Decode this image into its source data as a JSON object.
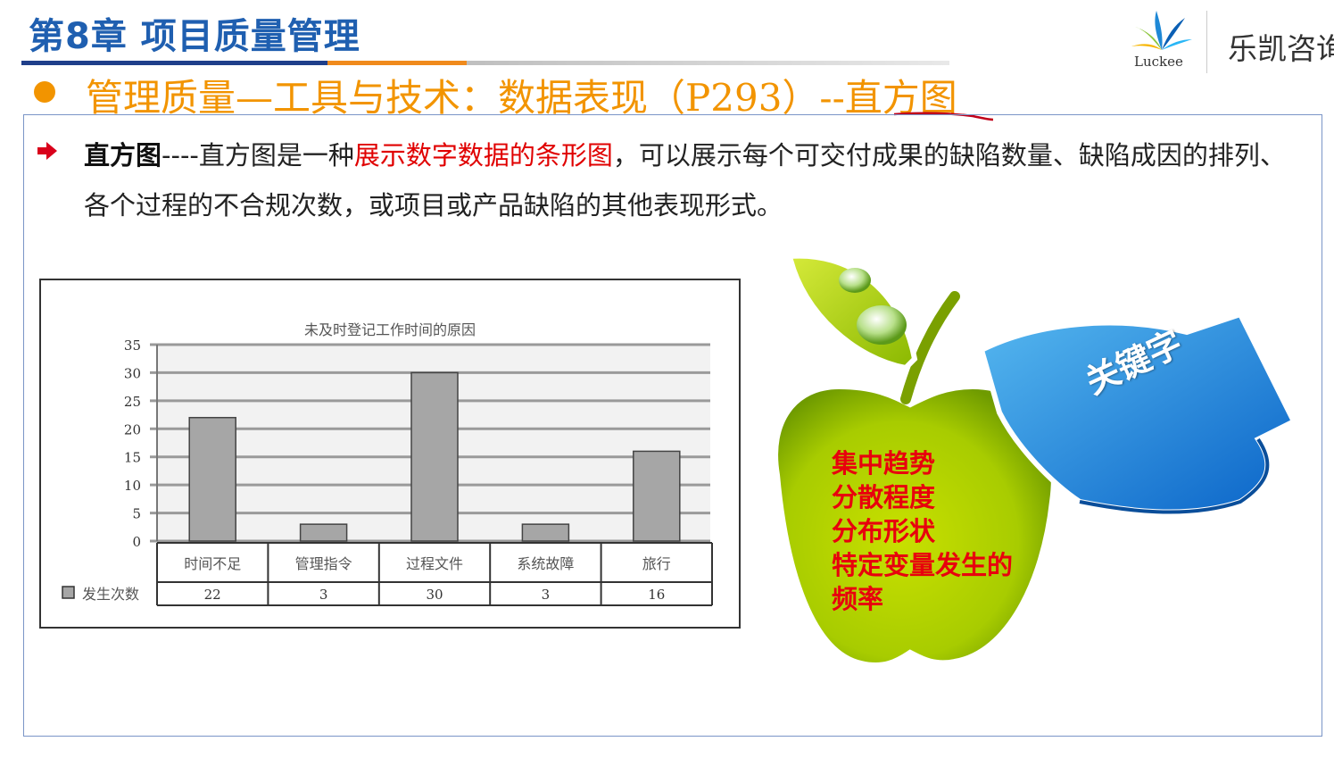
{
  "header": {
    "chapter_title": "第8章 项目质量管理",
    "brand_name": "乐凯咨询",
    "logo_text": "Luckee"
  },
  "subtitle": {
    "text": "管理质量—工具与技术：数据表现（P293）--直方图",
    "color": "#f29400"
  },
  "paragraph": {
    "term": "直方图",
    "dashes": "----",
    "lead": "直方图是一种",
    "highlight": "展示数字数据的条形图",
    "rest": "，可以展示每个可交付成果的缺陷数量、缺陷成因的排列、各个过程的不合规次数，或项目或产品缺陷的其他表现形式。",
    "highlight_color": "#e00000"
  },
  "chart_data": {
    "type": "bar",
    "title": "未及时登记工作时间的原因",
    "categories": [
      "时间不足",
      "管理指令",
      "过程文件",
      "系统故障",
      "旅行"
    ],
    "series": [
      {
        "name": "发生次数",
        "values": [
          22,
          3,
          30,
          3,
          16
        ]
      }
    ],
    "ylim": [
      0,
      35
    ],
    "yticks": [
      0,
      5,
      10,
      15,
      20,
      25,
      30,
      35
    ],
    "grid": true,
    "data_table": true,
    "bar_color": "#a6a6a6"
  },
  "keywords": {
    "label": "关键字",
    "items": [
      "集中趋势",
      "分散程度",
      "分布形状",
      "特定变量发生的",
      "频率"
    ],
    "color": "#e8000d"
  },
  "icons": [
    "red-arrow-bullet-icon",
    "orange-dot-icon",
    "luckee-logo-icon",
    "apple-illustration-icon",
    "blue-arrow-banner-icon"
  ]
}
